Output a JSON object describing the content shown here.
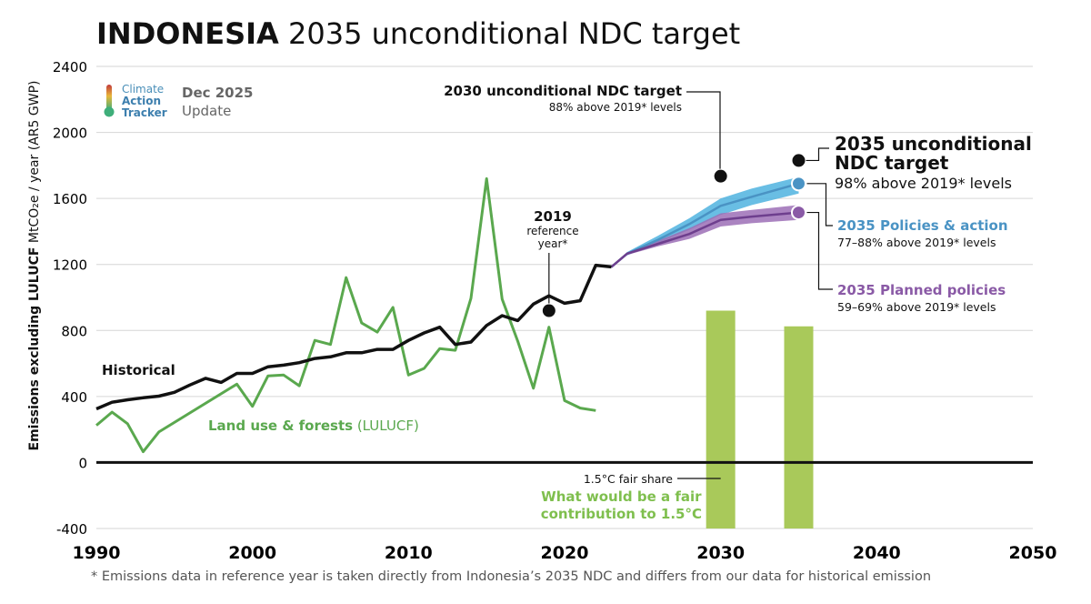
{
  "title": {
    "country": "INDONESIA",
    "rest": " 2035 unconditional NDC target"
  },
  "logo": {
    "line1": "Climate",
    "line2": "Action",
    "line3": "Tracker",
    "update_date": "Dec 2025",
    "update_word": "Update"
  },
  "y_axis_label": {
    "bold": "Emissions excluding LULUCF",
    "units": " MtCO₂e / year (AR5 GWP)"
  },
  "footnote": "*  Emissions data in reference year is taken directly from Indonesia’s 2035 NDC and differs from our data for historical emission",
  "annotations": {
    "ndc2030_title": "2030 unconditional NDC target",
    "ndc2030_sub": "88% above 2019* levels",
    "ndc2035_title_l1": "2035 unconditional",
    "ndc2035_title_l2": "NDC target",
    "ndc2035_sub": "98% above 2019* levels",
    "policies_title": "2035 Policies & action",
    "policies_sub": "77–88% above 2019* levels",
    "planned_title": "2035 Planned policies",
    "planned_sub": "59–69% above 2019* levels",
    "ref_year": "2019",
    "ref_l2": "reference",
    "ref_l3": "year*",
    "historical": "Historical",
    "lulucf_bold": "Land use & forests",
    "lulucf_paren": " (LULUCF)",
    "fair_share": "1.5°C fair share",
    "fair_l1": "What would be a fair",
    "fair_l2": "contribution to 1.5°C"
  },
  "colors": {
    "historical": "#111111",
    "lulucf": "#5aa84e",
    "policies": "#4a93c4",
    "policies_band": "#4fb3df",
    "planned": "#8a5aa6",
    "planned_band": "#9c6fb6",
    "fair_bar": "#a9c95a"
  },
  "chart_data": {
    "type": "line",
    "title": "INDONESIA 2035 unconditional NDC target",
    "ylabel": "Emissions excluding LULUCF MtCO₂e / year (AR5 GWP)",
    "xlim": [
      1990,
      2050
    ],
    "ylim": [
      -400,
      2400
    ],
    "x_ticks": [
      1990,
      2000,
      2010,
      2020,
      2030,
      2040,
      2050
    ],
    "y_ticks": [
      -400,
      0,
      400,
      800,
      1200,
      1600,
      2000,
      2400
    ],
    "grid": true,
    "series": [
      {
        "name": "Historical",
        "x": [
          1990,
          1991,
          1992,
          1993,
          1994,
          1995,
          1996,
          1997,
          1998,
          1999,
          2000,
          2001,
          2002,
          2003,
          2004,
          2005,
          2006,
          2007,
          2008,
          2009,
          2010,
          2011,
          2012,
          2013,
          2014,
          2015,
          2016,
          2017,
          2018,
          2019,
          2020,
          2021,
          2022,
          2023
        ],
        "values": [
          325,
          365,
          380,
          392,
          402,
          425,
          470,
          510,
          485,
          540,
          540,
          580,
          590,
          605,
          630,
          640,
          665,
          665,
          685,
          685,
          740,
          785,
          820,
          715,
          730,
          830,
          890,
          860,
          960,
          1010,
          965,
          980,
          1195,
          1185
        ]
      },
      {
        "name": "Land use & forests (LULUCF)",
        "x": [
          1990,
          1991,
          1992,
          1993,
          1994,
          1999,
          2000,
          2001,
          2002,
          2003,
          2004,
          2005,
          2006,
          2007,
          2008,
          2009,
          2010,
          2011,
          2012,
          2013,
          2014,
          2015,
          2016,
          2017,
          2018,
          2019,
          2020,
          2021,
          2022
        ],
        "values": [
          225,
          305,
          235,
          65,
          185,
          475,
          340,
          525,
          530,
          465,
          740,
          715,
          1120,
          845,
          790,
          940,
          530,
          570,
          690,
          680,
          995,
          1720,
          990,
          735,
          450,
          820,
          375,
          330,
          315
        ]
      },
      {
        "name": "2035 Policies & action",
        "x": [
          2023,
          2024,
          2026,
          2028,
          2030,
          2032,
          2035
        ],
        "values": [
          1185,
          1265,
          1350,
          1445,
          1555,
          1610,
          1690
        ],
        "range_low": [
          1185,
          1255,
          1330,
          1410,
          1500,
          1560,
          1630
        ],
        "range_high": [
          1185,
          1275,
          1375,
          1480,
          1600,
          1660,
          1730
        ]
      },
      {
        "name": "2035 Planned policies",
        "x": [
          2023,
          2024,
          2026,
          2028,
          2030,
          2032,
          2035
        ],
        "values": [
          1185,
          1265,
          1325,
          1385,
          1470,
          1490,
          1515
        ],
        "range_low": [
          1185,
          1258,
          1310,
          1355,
          1430,
          1450,
          1470
        ],
        "range_high": [
          1185,
          1272,
          1345,
          1420,
          1510,
          1530,
          1560
        ]
      }
    ],
    "points": [
      {
        "name": "2019 reference year",
        "x": 2019,
        "y": 920
      },
      {
        "name": "2030 unconditional NDC target",
        "x": 2030,
        "y": 1735
      },
      {
        "name": "2035 unconditional NDC target",
        "x": 2035,
        "y": 1830
      },
      {
        "name": "2035 Policies & action",
        "x": 2035,
        "y": 1690
      },
      {
        "name": "2035 Planned policies",
        "x": 2035,
        "y": 1515
      }
    ],
    "bars": [
      {
        "name": "1.5°C fair share 2030",
        "x": 2030,
        "range": [
          -400,
          920
        ]
      },
      {
        "name": "1.5°C fair share 2035",
        "x": 2035,
        "range": [
          -400,
          825
        ]
      }
    ]
  }
}
